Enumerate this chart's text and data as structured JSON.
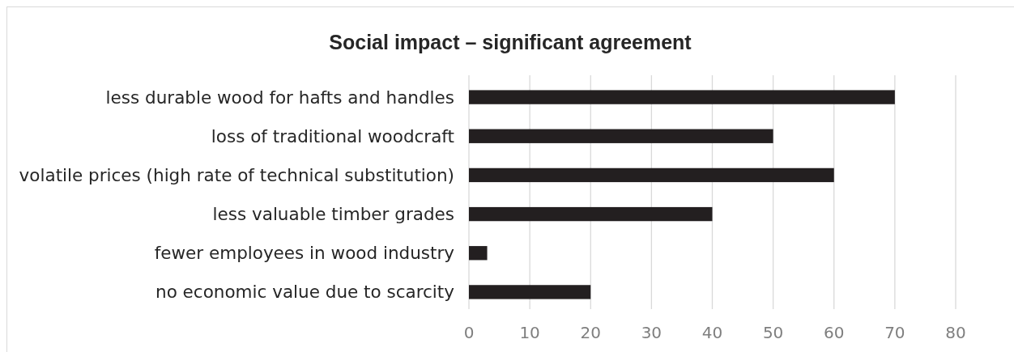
{
  "chart_data": {
    "type": "bar",
    "orientation": "horizontal",
    "title": "Social impact – significant agreement",
    "categories": [
      "less durable wood for hafts and handles",
      "loss of traditional woodcraft",
      "volatile prices (high rate of technical substitution)",
      "less valuable timber grades",
      "fewer employees in wood industry",
      "no economic value due to scarcity"
    ],
    "values": [
      70,
      50,
      60,
      40,
      3,
      20
    ],
    "color": "#231f20",
    "xlim": [
      0,
      80
    ],
    "xticks": [
      0,
      10,
      20,
      30,
      40,
      50,
      60,
      70,
      80
    ],
    "grid": "x"
  }
}
